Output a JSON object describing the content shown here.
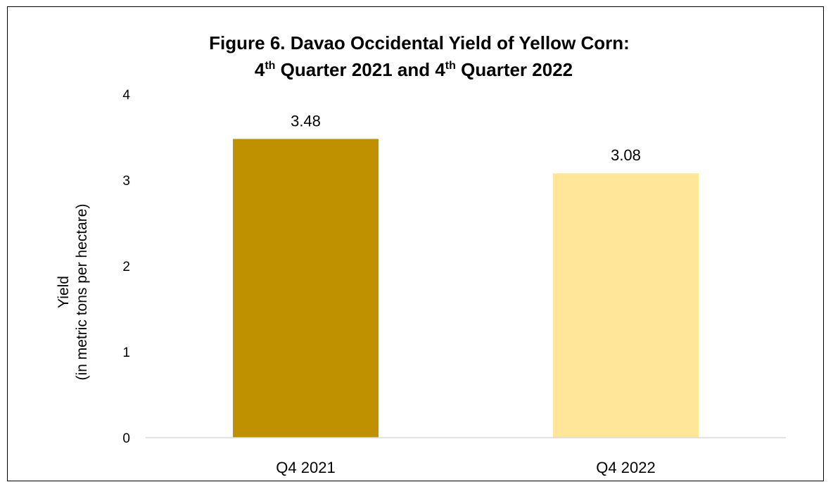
{
  "chart_data": {
    "type": "bar",
    "title_line1": "Figure 6. Davao Occidental Yield of Yellow Corn:",
    "title_line2": {
      "part1": "4",
      "sup1": "th",
      "part2": " Quarter 2021 and 4",
      "sup2": "th",
      "part3": " Quarter 2022"
    },
    "ylabel_line1": "Yield",
    "ylabel_line2": "(in metric tons per hectare)",
    "xlabel": "",
    "categories": [
      "Q4 2021",
      "Q4 2022"
    ],
    "values": [
      3.48,
      3.08
    ],
    "data_labels": [
      "3.48",
      "3.08"
    ],
    "colors": [
      "#BF9000",
      "#FFE699"
    ],
    "ylim": [
      0,
      4
    ],
    "yticks": [
      "0",
      "1",
      "2",
      "3",
      "4"
    ],
    "grid": false,
    "legend": "none"
  }
}
